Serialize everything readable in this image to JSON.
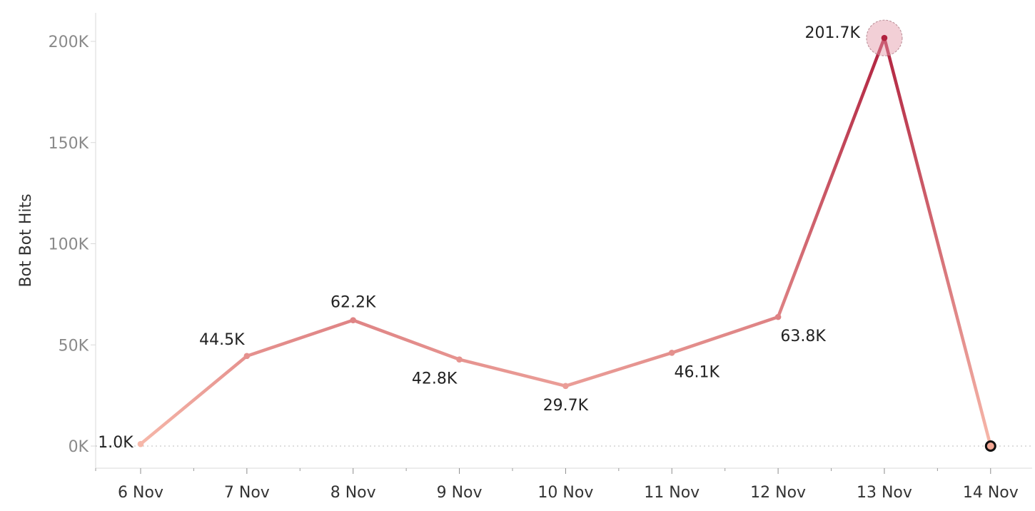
{
  "chart_data": {
    "type": "line",
    "title": "",
    "xlabel": "",
    "ylabel": "Bot Bot Hits",
    "categories": [
      "6 Nov",
      "7 Nov",
      "8 Nov",
      "9 Nov",
      "10 Nov",
      "11 Nov",
      "12 Nov",
      "13 Nov",
      "14 Nov"
    ],
    "series": [
      {
        "values": [
          1000,
          44500,
          62200,
          42800,
          29700,
          46100,
          63800,
          201700,
          0
        ]
      }
    ],
    "data_labels": [
      "1.0K",
      "44.5K",
      "62.2K",
      "42.8K",
      "29.7K",
      "46.1K",
      "63.8K",
      "201.7K",
      ""
    ],
    "y_ticks": [
      0,
      50000,
      100000,
      150000,
      200000
    ],
    "y_tick_labels": [
      "0K",
      "50K",
      "100K",
      "150K",
      "200K"
    ],
    "ylim": [
      0,
      210000
    ],
    "grid": false,
    "legend": "none",
    "colors": {
      "low": "#f7b8aa",
      "mid": "#ef8a74",
      "high": "#b1223f",
      "highlight_halo": "#e39aa9",
      "end_marker_fill": "#f4a895",
      "end_marker_stroke": "#111111",
      "baseline": "#bdbdbd",
      "axis": "#d8d8d8"
    }
  }
}
